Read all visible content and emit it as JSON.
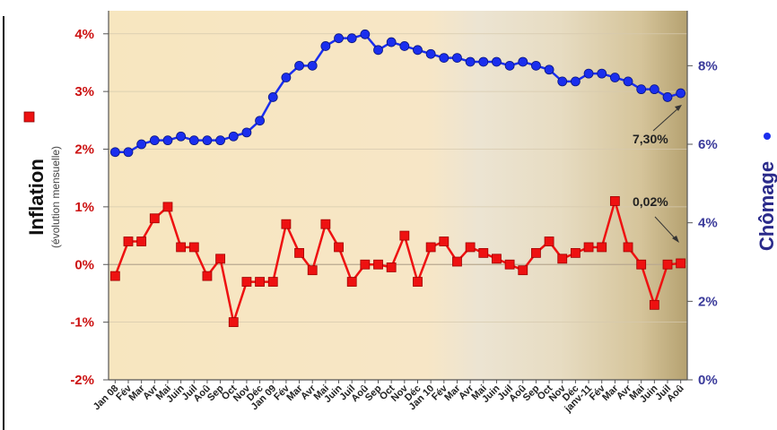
{
  "chart_data": {
    "type": "line",
    "categories": [
      "Jan 08",
      "Fév",
      "Mar",
      "Avr",
      "Mai",
      "Juin",
      "Juil",
      "Aoû",
      "Sep",
      "Oct",
      "Nov",
      "Déc",
      "Jan 09",
      "Fév",
      "Mar",
      "Avr",
      "Mai",
      "Juin",
      "Juil",
      "Aoû",
      "Sep",
      "Oct",
      "Nov",
      "Déc",
      "Jan 10",
      "Fév",
      "Mar",
      "Avr",
      "Mai",
      "Juin",
      "Juil",
      "Aoû",
      "Sep",
      "Oct",
      "Nov",
      "Déc",
      "janv-11",
      "Fév",
      "Mar",
      "Avr",
      "Mai",
      "Juin",
      "Juil",
      "Aoû"
    ],
    "series": [
      {
        "name": "Inflation",
        "sublabel": "(évolution mensuelle)",
        "axis": "left",
        "color": "#ee1111",
        "marker": "square",
        "values": [
          -0.2,
          0.4,
          0.4,
          0.8,
          1.0,
          0.3,
          0.3,
          -0.2,
          0.1,
          -1.0,
          -0.3,
          -0.3,
          -0.3,
          0.7,
          0.2,
          -0.1,
          0.7,
          0.3,
          -0.3,
          0.0,
          0.0,
          -0.05,
          0.5,
          -0.3,
          0.3,
          0.4,
          0.05,
          0.3,
          0.2,
          0.1,
          0.0,
          -0.1,
          0.2,
          0.4,
          0.1,
          0.2,
          0.3,
          0.3,
          1.1,
          0.3,
          0.0,
          -0.7,
          0.0,
          0.02
        ]
      },
      {
        "name": "Chômage",
        "axis": "right",
        "color": "#1a2eee",
        "marker": "circle",
        "values": [
          5.8,
          5.8,
          6.0,
          6.1,
          6.1,
          6.2,
          6.1,
          6.1,
          6.1,
          6.2,
          6.3,
          6.6,
          7.2,
          7.7,
          8.0,
          8.0,
          8.5,
          8.7,
          8.7,
          8.8,
          8.4,
          8.6,
          8.5,
          8.4,
          8.3,
          8.2,
          8.2,
          8.1,
          8.1,
          8.1,
          8.0,
          8.1,
          8.0,
          7.9,
          7.6,
          7.6,
          7.8,
          7.8,
          7.7,
          7.6,
          7.4,
          7.4,
          7.2,
          7.3
        ]
      }
    ],
    "yleft": {
      "ticks": [
        "-2%",
        "-1%",
        "0%",
        "1%",
        "2%",
        "3%",
        "4%"
      ],
      "min": -2,
      "max": 4.4
    },
    "yright": {
      "ticks": [
        "0%",
        "2%",
        "4%",
        "6%",
        "8%"
      ],
      "min": 0,
      "max": 9.4
    },
    "annotations": [
      {
        "text": "7,30%",
        "series": "Chômage"
      },
      {
        "text": "0,02%",
        "series": "Inflation"
      }
    ],
    "ylabel_left": "Inflation",
    "ylabel_left_sub": "(évolution mensuelle)",
    "ylabel_right": "Chômage",
    "grid": "horizontal"
  }
}
